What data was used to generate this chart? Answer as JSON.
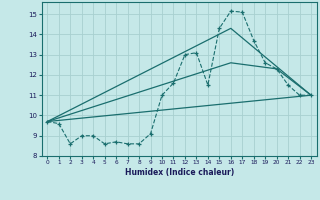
{
  "xlabel": "Humidex (Indice chaleur)",
  "xlim": [
    -0.5,
    23.5
  ],
  "ylim": [
    8.0,
    15.6
  ],
  "yticks": [
    8,
    9,
    10,
    11,
    12,
    13,
    14,
    15
  ],
  "xticks": [
    0,
    1,
    2,
    3,
    4,
    5,
    6,
    7,
    8,
    9,
    10,
    11,
    12,
    13,
    14,
    15,
    16,
    17,
    18,
    19,
    20,
    21,
    22,
    23
  ],
  "bg_color": "#c5e8e8",
  "line_color": "#1a6e6e",
  "grid_color": "#a8d0d0",
  "line1_x": [
    0,
    1,
    2,
    3,
    4,
    5,
    6,
    7,
    8,
    9,
    10,
    11,
    12,
    13,
    14,
    15,
    16,
    17,
    18,
    19,
    20,
    21,
    22,
    23
  ],
  "line1_y": [
    9.7,
    9.6,
    8.6,
    9.0,
    9.0,
    8.6,
    8.7,
    8.6,
    8.6,
    9.1,
    11.0,
    11.6,
    13.0,
    13.1,
    11.5,
    14.3,
    15.15,
    15.1,
    13.7,
    12.6,
    12.3,
    11.5,
    11.0,
    11.0
  ],
  "line2_x": [
    0,
    23
  ],
  "line2_y": [
    9.7,
    11.0
  ],
  "line3_x": [
    0,
    16,
    20,
    23
  ],
  "line3_y": [
    9.7,
    12.6,
    12.3,
    11.0
  ],
  "line4_x": [
    0,
    16,
    23
  ],
  "line4_y": [
    9.7,
    14.3,
    11.0
  ]
}
